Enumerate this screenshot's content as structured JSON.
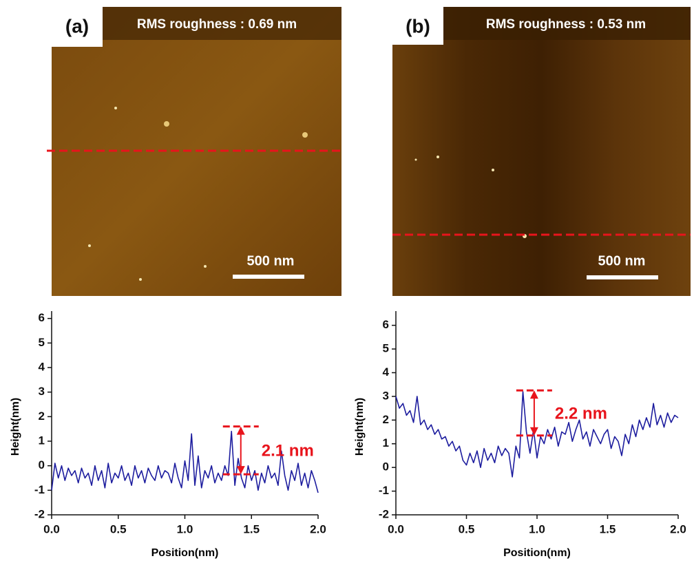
{
  "panels": [
    {
      "label": "(a)",
      "rms": "RMS roughness : 0.69 nm",
      "scale_bar": "500 nm"
    },
    {
      "label": "(b)",
      "rms": "RMS roughness : 0.53 nm",
      "scale_bar": "500 nm"
    }
  ],
  "chart_data": [
    {
      "type": "line",
      "x_label": "Position(nm)",
      "y_label": "Height(nm)",
      "xlim": [
        0,
        2
      ],
      "ylim": [
        -2,
        6.3
      ],
      "xticks": [
        {
          "value": 0,
          "label": "0.0"
        },
        0.5,
        {
          "value": 1,
          "label": "1.0"
        },
        1.5,
        {
          "value": 2,
          "label": "2.0"
        }
      ],
      "yticks": [
        -2,
        -1,
        0,
        1,
        2,
        3,
        4,
        5,
        6
      ],
      "x": [
        0,
        0.025,
        0.05,
        0.075,
        0.1,
        0.125,
        0.15,
        0.175,
        0.2,
        0.225,
        0.25,
        0.275,
        0.3,
        0.325,
        0.35,
        0.375,
        0.4,
        0.425,
        0.45,
        0.475,
        0.5,
        0.525,
        0.55,
        0.575,
        0.6,
        0.625,
        0.65,
        0.675,
        0.7,
        0.725,
        0.75,
        0.775,
        0.8,
        0.825,
        0.85,
        0.875,
        0.9,
        0.925,
        0.95,
        0.975,
        1,
        1.025,
        1.05,
        1.075,
        1.1,
        1.125,
        1.15,
        1.175,
        1.2,
        1.225,
        1.25,
        1.275,
        1.3,
        1.325,
        1.35,
        1.375,
        1.4,
        1.425,
        1.45,
        1.475,
        1.5,
        1.525,
        1.55,
        1.575,
        1.6,
        1.625,
        1.65,
        1.675,
        1.7,
        1.725,
        1.75,
        1.775,
        1.8,
        1.825,
        1.85,
        1.875,
        1.9,
        1.925,
        1.95,
        1.975,
        2
      ],
      "series": [
        {
          "color": "#1c1c9e",
          "values": [
            -1.0,
            0.1,
            -0.5,
            0.0,
            -0.6,
            -0.1,
            -0.4,
            -0.2,
            -0.7,
            -0.1,
            -0.5,
            -0.3,
            -0.8,
            0.0,
            -0.6,
            -0.2,
            -0.9,
            0.1,
            -0.7,
            -0.3,
            -0.5,
            0.0,
            -0.6,
            -0.3,
            -0.8,
            0.0,
            -0.5,
            -0.2,
            -0.7,
            -0.1,
            -0.4,
            -0.6,
            0.0,
            -0.5,
            -0.2,
            -0.3,
            -0.7,
            0.1,
            -0.5,
            -0.9,
            0.2,
            -0.6,
            1.3,
            -0.8,
            0.4,
            -0.9,
            -0.2,
            -0.5,
            0.0,
            -0.7,
            -0.3,
            -0.6,
            0.0,
            -0.4,
            1.4,
            -0.8,
            0.3,
            -0.5,
            -0.9,
            0.0,
            -0.6,
            -0.2,
            -1.0,
            -0.3,
            -0.7,
            0.0,
            -0.5,
            -0.3,
            -0.8,
            0.6,
            -0.4,
            -1.0,
            -0.2,
            -0.6,
            0.1,
            -0.8,
            -0.3,
            -0.9,
            -0.2,
            -0.6,
            -1.1
          ]
        }
      ],
      "annotation": {
        "text": "2.1 nm",
        "x": 1.42,
        "y1": -0.35,
        "y2": 1.6,
        "color": "#e8141c"
      }
    },
    {
      "type": "line",
      "x_label": "Position(nm)",
      "y_label": "Height(nm)",
      "xlim": [
        0,
        2
      ],
      "ylim": [
        -2,
        6.6
      ],
      "xticks": [
        {
          "value": 0,
          "label": "0.0"
        },
        0.5,
        {
          "value": 1,
          "label": "1.0"
        },
        1.5,
        {
          "value": 2,
          "label": "2.0"
        }
      ],
      "yticks": [
        -2,
        -1,
        0,
        1,
        2,
        3,
        4,
        5,
        6
      ],
      "x": [
        0,
        0.025,
        0.05,
        0.075,
        0.1,
        0.125,
        0.15,
        0.175,
        0.2,
        0.225,
        0.25,
        0.275,
        0.3,
        0.325,
        0.35,
        0.375,
        0.4,
        0.425,
        0.45,
        0.475,
        0.5,
        0.525,
        0.55,
        0.575,
        0.6,
        0.625,
        0.65,
        0.675,
        0.7,
        0.725,
        0.75,
        0.775,
        0.8,
        0.825,
        0.85,
        0.875,
        0.9,
        0.925,
        0.95,
        0.975,
        1,
        1.025,
        1.05,
        1.075,
        1.1,
        1.125,
        1.15,
        1.175,
        1.2,
        1.225,
        1.25,
        1.275,
        1.3,
        1.325,
        1.35,
        1.375,
        1.4,
        1.425,
        1.45,
        1.475,
        1.5,
        1.525,
        1.55,
        1.575,
        1.6,
        1.625,
        1.65,
        1.675,
        1.7,
        1.725,
        1.75,
        1.775,
        1.8,
        1.825,
        1.85,
        1.875,
        1.9,
        1.925,
        1.95,
        1.975,
        2
      ],
      "series": [
        {
          "color": "#1c1c9e",
          "values": [
            3.0,
            2.5,
            2.7,
            2.2,
            2.4,
            1.9,
            3.0,
            1.8,
            2.0,
            1.6,
            1.8,
            1.4,
            1.6,
            1.2,
            1.3,
            0.9,
            1.1,
            0.7,
            0.9,
            0.3,
            0.1,
            0.6,
            0.2,
            0.7,
            0.0,
            0.8,
            0.3,
            0.6,
            0.2,
            0.9,
            0.5,
            0.8,
            0.6,
            -0.4,
            0.9,
            0.4,
            3.2,
            1.5,
            0.6,
            1.6,
            0.4,
            1.3,
            1.0,
            1.6,
            1.2,
            1.7,
            0.9,
            1.5,
            1.4,
            1.9,
            1.1,
            1.6,
            2.0,
            1.2,
            1.5,
            0.9,
            1.6,
            1.3,
            1.0,
            1.4,
            1.6,
            0.8,
            1.3,
            1.1,
            0.5,
            1.4,
            1.0,
            1.8,
            1.3,
            2.0,
            1.6,
            2.1,
            1.7,
            2.7,
            1.8,
            2.2,
            1.7,
            2.3,
            1.9,
            2.2,
            2.1
          ]
        }
      ],
      "annotation": {
        "text": "2.2 nm",
        "x": 0.98,
        "y1": 1.35,
        "y2": 3.25,
        "color": "#e8141c"
      }
    }
  ]
}
